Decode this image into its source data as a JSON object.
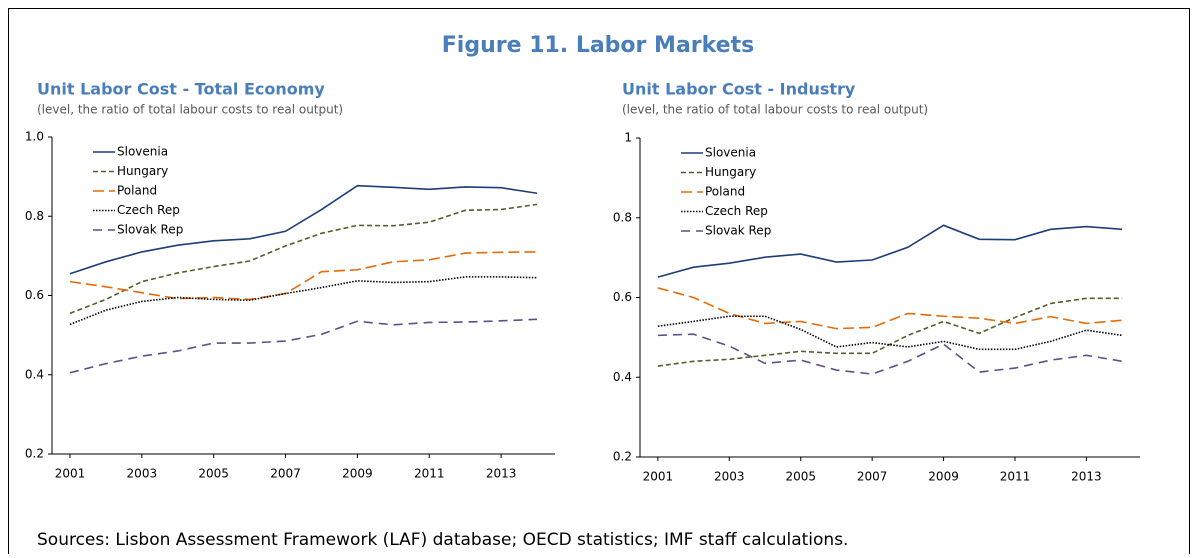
{
  "figure_title": "Figure 11. Labor Markets",
  "source": "Sources: Lisbon Assessment Framework (LAF) database; OECD statistics; IMF staff calculations.",
  "chart_data": [
    {
      "type": "line",
      "title": "Unit Labor Cost - Total Economy",
      "subtitle": "(level, the ratio of total labour costs to real output)",
      "x": [
        2001,
        2002,
        2003,
        2004,
        2005,
        2006,
        2007,
        2008,
        2009,
        2010,
        2011,
        2012,
        2013,
        2014
      ],
      "xlim": [
        2000.5,
        2014.5
      ],
      "xticks": [
        2001,
        2003,
        2005,
        2007,
        2009,
        2011,
        2013
      ],
      "ylim": [
        0.2,
        1
      ],
      "yticks": [
        0.2,
        0.4,
        0.6,
        0.8,
        {
          "value": 1,
          "label": "1.0"
        }
      ],
      "grid": false,
      "legend": "upper left",
      "series": [
        {
          "name": "Slovenia",
          "color": "#1f3d7a",
          "dash": "solid",
          "values": [
            0.655,
            0.685,
            0.71,
            0.727,
            0.738,
            0.743,
            0.762,
            0.817,
            0.877,
            0.873,
            0.868,
            0.874,
            0.872,
            0.858
          ]
        },
        {
          "name": "Hungary",
          "color": "#4f6228",
          "dash": "dashed",
          "values": [
            0.555,
            0.59,
            0.635,
            0.657,
            0.673,
            0.687,
            0.725,
            0.757,
            0.777,
            0.776,
            0.785,
            0.815,
            0.817,
            0.83
          ]
        },
        {
          "name": "Poland",
          "color": "#e46c0a",
          "dash": "long-dash",
          "values": [
            0.635,
            0.622,
            0.607,
            0.592,
            0.595,
            0.59,
            0.605,
            0.66,
            0.665,
            0.685,
            0.69,
            0.707,
            0.709,
            0.71
          ]
        },
        {
          "name": "Czech Rep",
          "color": "#000000",
          "dash": "dotted",
          "values": [
            0.527,
            0.563,
            0.585,
            0.595,
            0.59,
            0.588,
            0.605,
            0.62,
            0.637,
            0.633,
            0.635,
            0.647,
            0.647,
            0.645
          ]
        },
        {
          "name": "Slovak Rep",
          "color": "#5b4f8c",
          "dash": "dashed-wide",
          "values": [
            0.405,
            0.428,
            0.447,
            0.46,
            0.48,
            0.48,
            0.485,
            0.502,
            0.535,
            0.526,
            0.532,
            0.533,
            0.536,
            0.54
          ]
        }
      ]
    },
    {
      "type": "line",
      "title": "Unit Labor Cost - Industry",
      "subtitle": "(level, the ratio of total labour costs to real output)",
      "x": [
        2001,
        2002,
        2003,
        2004,
        2005,
        2006,
        2007,
        2008,
        2009,
        2010,
        2011,
        2012,
        2013,
        2014
      ],
      "xlim": [
        2000.5,
        2014.5
      ],
      "xticks": [
        2001,
        2003,
        2005,
        2007,
        2009,
        2011,
        2013
      ],
      "ylim": [
        0.2,
        1
      ],
      "yticks": [
        0.2,
        0.4,
        0.6,
        0.8,
        1
      ],
      "grid": false,
      "legend": "upper left",
      "series": [
        {
          "name": "Slovenia",
          "color": "#1f3d7a",
          "dash": "solid",
          "values": [
            0.651,
            0.676,
            0.686,
            0.701,
            0.709,
            0.689,
            0.694,
            0.726,
            0.781,
            0.746,
            0.745,
            0.771,
            0.778,
            0.771
          ]
        },
        {
          "name": "Hungary",
          "color": "#4f6228",
          "dash": "dashed",
          "values": [
            0.428,
            0.44,
            0.445,
            0.455,
            0.465,
            0.46,
            0.46,
            0.505,
            0.54,
            0.51,
            0.55,
            0.585,
            0.598,
            0.598
          ]
        },
        {
          "name": "Poland",
          "color": "#e46c0a",
          "dash": "long-dash",
          "values": [
            0.624,
            0.6,
            0.56,
            0.535,
            0.54,
            0.522,
            0.525,
            0.56,
            0.553,
            0.548,
            0.535,
            0.552,
            0.535,
            0.543
          ]
        },
        {
          "name": "Czech Rep",
          "color": "#000000",
          "dash": "dotted",
          "values": [
            0.528,
            0.54,
            0.553,
            0.553,
            0.52,
            0.476,
            0.487,
            0.476,
            0.49,
            0.47,
            0.47,
            0.49,
            0.518,
            0.505
          ]
        },
        {
          "name": "Slovak Rep",
          "color": "#5b4f8c",
          "dash": "dashed-wide",
          "values": [
            0.505,
            0.508,
            0.478,
            0.435,
            0.443,
            0.418,
            0.408,
            0.44,
            0.483,
            0.413,
            0.423,
            0.443,
            0.455,
            0.44
          ]
        }
      ]
    }
  ]
}
